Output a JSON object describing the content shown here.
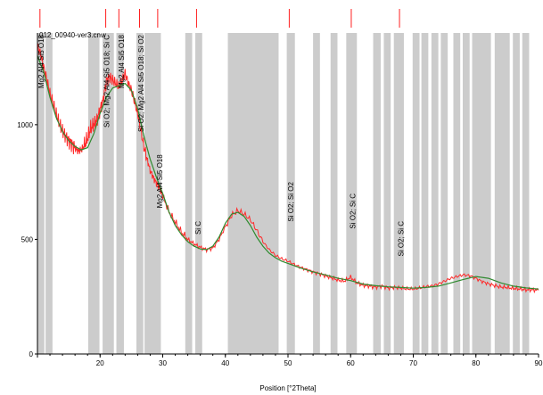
{
  "chart_data": {
    "type": "line",
    "file_label": "012_00940-ver3.cnw",
    "xlabel": "Position [°2Theta]",
    "ylabel": "",
    "xlim": [
      10,
      90
    ],
    "ylim": [
      0,
      1400
    ],
    "x_ticks": [
      10,
      20,
      30,
      40,
      50,
      60,
      70,
      80,
      90
    ],
    "x_tick_labels": [
      "",
      "20",
      "30",
      "40",
      "50",
      "60",
      "70",
      "80",
      "90"
    ],
    "y_ticks": [
      0,
      500,
      1000
    ],
    "y_tick_labels": [
      "0",
      "500",
      "1000"
    ],
    "grid": false,
    "legend": "none",
    "colors": {
      "observed": "#ff2a2a",
      "fit": "#2f8a2f",
      "bars": "#cccccc",
      "reference_marks": "#ff2020"
    },
    "series": [
      {
        "role": "observed",
        "x": [
          10,
          10.5,
          11,
          11.5,
          12,
          12.5,
          13,
          13.5,
          14,
          14.5,
          15,
          15.5,
          16,
          16.5,
          17,
          17.5,
          18,
          18.5,
          19,
          19.5,
          20,
          20.5,
          21,
          21.5,
          22,
          22.5,
          23,
          23.5,
          24,
          24.5,
          25,
          25.5,
          26,
          26.5,
          27,
          27.5,
          28,
          28.5,
          29,
          29.5,
          30,
          31,
          32,
          33,
          34,
          35,
          36,
          37,
          38,
          39,
          40,
          41,
          42,
          43,
          44,
          45,
          46,
          47,
          48,
          49,
          50,
          51,
          52,
          53,
          54,
          55,
          56,
          57,
          58,
          59,
          60,
          61,
          62,
          63,
          64,
          65,
          66,
          67,
          68,
          69,
          70,
          71,
          72,
          73,
          74,
          75,
          76,
          77,
          78,
          79,
          80,
          81,
          82,
          83,
          84,
          85,
          86,
          87,
          88,
          89,
          90
        ],
        "y": [
          1340,
          1310,
          1250,
          1195,
          1135,
          1090,
          1045,
          1005,
          975,
          950,
          930,
          915,
          900,
          885,
          890,
          910,
          940,
          985,
          1000,
          1020,
          1065,
          1110,
          1190,
          1210,
          1195,
          1180,
          1165,
          1190,
          1225,
          1180,
          1150,
          1100,
          1050,
          975,
          905,
          850,
          800,
          770,
          745,
          725,
          690,
          620,
          575,
          530,
          500,
          480,
          465,
          455,
          462,
          500,
          555,
          605,
          625,
          610,
          585,
          540,
          490,
          455,
          430,
          415,
          405,
          390,
          378,
          368,
          358,
          350,
          340,
          332,
          322,
          318,
          335,
          310,
          300,
          296,
          292,
          296,
          288,
          290,
          288,
          284,
          283,
          288,
          294,
          297,
          305,
          318,
          330,
          338,
          345,
          342,
          330,
          316,
          306,
          298,
          292,
          290,
          286,
          284,
          280,
          280,
          278
        ]
      },
      {
        "role": "fit",
        "x": [
          10,
          11,
          12,
          13,
          14,
          15,
          16,
          17,
          18,
          19,
          20,
          21,
          22,
          23,
          24,
          25,
          26,
          27,
          28,
          29,
          30,
          31,
          32,
          33,
          34,
          35,
          36,
          37,
          38,
          39,
          40,
          41,
          42,
          43,
          44,
          45,
          46,
          47,
          48,
          49,
          50,
          52,
          54,
          56,
          58,
          60,
          62,
          64,
          66,
          68,
          70,
          72,
          74,
          76,
          78,
          80,
          82,
          84,
          86,
          88,
          90
        ],
        "y": [
          1300,
          1230,
          1120,
          1030,
          970,
          930,
          905,
          890,
          900,
          960,
          1050,
          1120,
          1160,
          1170,
          1180,
          1150,
          1070,
          950,
          850,
          770,
          700,
          620,
          560,
          520,
          490,
          470,
          458,
          455,
          470,
          510,
          570,
          610,
          618,
          600,
          560,
          510,
          470,
          440,
          420,
          405,
          395,
          375,
          358,
          345,
          330,
          320,
          305,
          298,
          293,
          290,
          287,
          290,
          296,
          310,
          325,
          338,
          330,
          310,
          296,
          288,
          283
        ]
      }
    ],
    "bars": [
      {
        "x1": 10.0,
        "x2": 11.1
      },
      {
        "x1": 11.3,
        "x2": 12.4
      },
      {
        "x1": 18.1,
        "x2": 19.9
      },
      {
        "x1": 20.4,
        "x2": 22.2
      },
      {
        "x1": 22.6,
        "x2": 23.8
      },
      {
        "x1": 25.8,
        "x2": 26.9
      },
      {
        "x1": 27.1,
        "x2": 29.7
      },
      {
        "x1": 33.6,
        "x2": 34.7
      },
      {
        "x1": 35.2,
        "x2": 36.3
      },
      {
        "x1": 40.4,
        "x2": 48.5
      },
      {
        "x1": 49.8,
        "x2": 51.1
      },
      {
        "x1": 54.0,
        "x2": 55.1
      },
      {
        "x1": 56.8,
        "x2": 57.9
      },
      {
        "x1": 59.3,
        "x2": 61.0
      },
      {
        "x1": 63.6,
        "x2": 64.8
      },
      {
        "x1": 65.3,
        "x2": 66.4
      },
      {
        "x1": 66.9,
        "x2": 68.5
      },
      {
        "x1": 69.9,
        "x2": 71.0
      },
      {
        "x1": 71.3,
        "x2": 72.4
      },
      {
        "x1": 72.9,
        "x2": 74.0
      },
      {
        "x1": 74.4,
        "x2": 75.5
      },
      {
        "x1": 76.4,
        "x2": 77.5
      },
      {
        "x1": 77.9,
        "x2": 79.0
      },
      {
        "x1": 79.4,
        "x2": 82.4
      },
      {
        "x1": 83.0,
        "x2": 85.4
      },
      {
        "x1": 85.9,
        "x2": 87.0
      },
      {
        "x1": 87.4,
        "x2": 88.5
      }
    ],
    "reference_marks": [
      10.4,
      20.9,
      23.0,
      26.3,
      29.2,
      35.4,
      50.2,
      60.1,
      67.8
    ],
    "peak_labels": [
      {
        "x": 10.6,
        "y": 1400,
        "text": "Mg2 Al4 Si5 O18"
      },
      {
        "x": 21.0,
        "y": 1400,
        "text": "Si O2; Mg2 Al4 Si5 O18; Si C"
      },
      {
        "x": 23.4,
        "y": 1400,
        "text": "Mg2 Al4 Si5 O18"
      },
      {
        "x": 26.5,
        "y": 1400,
        "text": "Si O2; Mg2 Al4 Si5 O18; Si O2"
      },
      {
        "x": 29.5,
        "y": 870,
        "text": "Mg2 Al4 Si5 O18"
      },
      {
        "x": 35.6,
        "y": 580,
        "text": "Si C"
      },
      {
        "x": 50.4,
        "y": 750,
        "text": "Si O2; Si O2"
      },
      {
        "x": 60.3,
        "y": 700,
        "text": "Si O2; Si C"
      },
      {
        "x": 68.0,
        "y": 580,
        "text": "Si O2; Si C"
      }
    ]
  }
}
